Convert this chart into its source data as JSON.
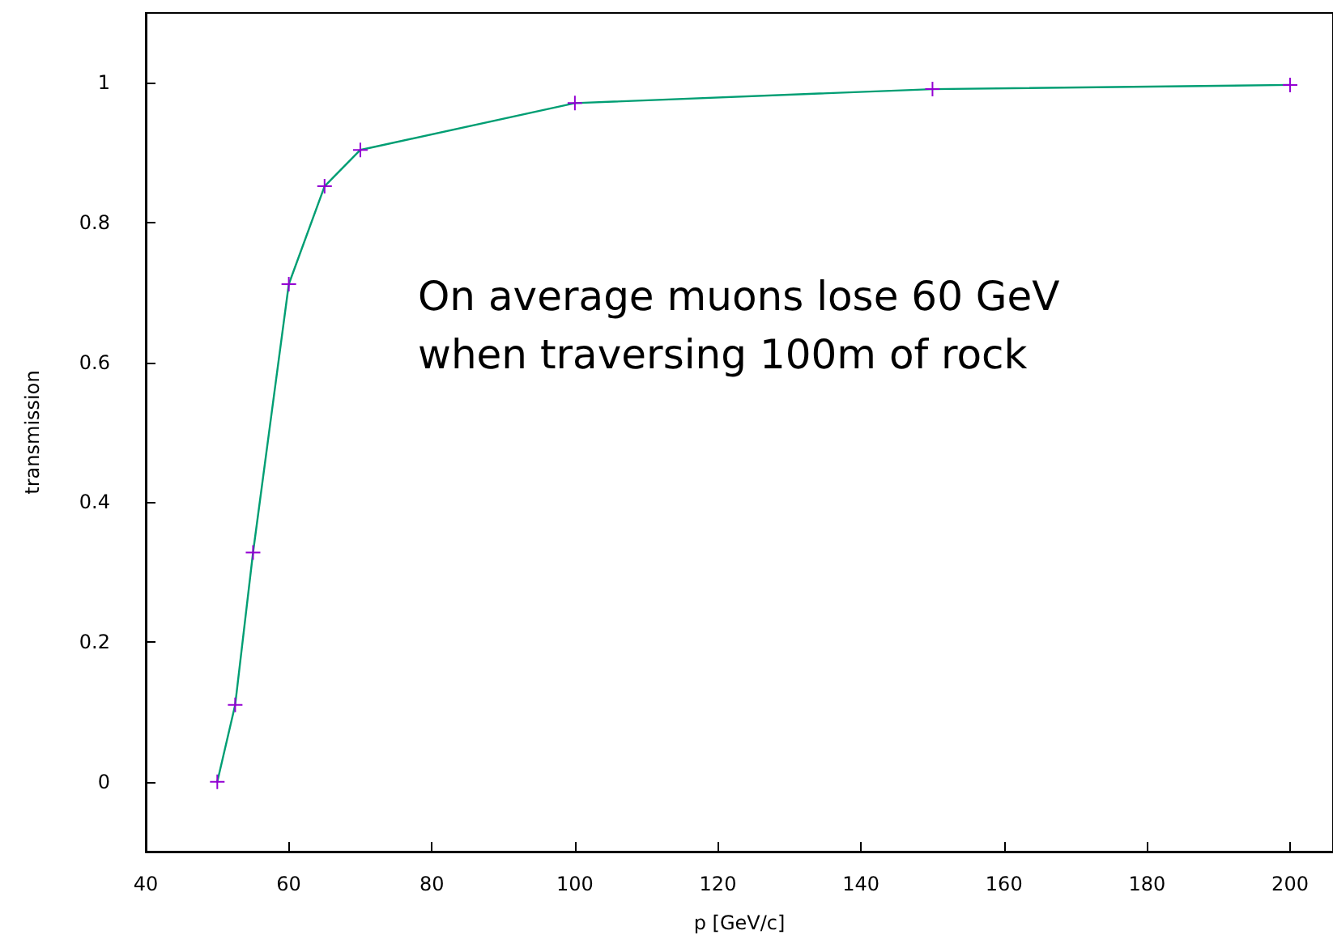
{
  "chart_data": {
    "type": "line",
    "xlabel": "p [GeV/c]",
    "ylabel": "transmission",
    "annotations": [
      "On average muons lose 60 GeV\nwhen traversing 100m of rock"
    ],
    "series": [
      {
        "color": "#009e73",
        "colors": [
          "#9400d3",
          "#9400d3",
          "#9400d3",
          "#9400d3",
          "#9400d3",
          "#9400d3",
          "#9400d3",
          "#9400d3",
          "#9400d3"
        ],
        "x": [
          50,
          52.5,
          55,
          60,
          65,
          70,
          100,
          150,
          200
        ],
        "values": [
          0,
          0.11,
          0.328,
          0.712,
          0.852,
          0.904,
          0.971,
          0.991,
          0.997
        ]
      }
    ],
    "xlim": [
      40,
      206
    ],
    "xticks": [
      40,
      60,
      80,
      100,
      120,
      140,
      160,
      180,
      200
    ],
    "ylim": [
      -0.1,
      1.1
    ],
    "yticks": [
      0,
      0.2,
      0.4,
      0.6,
      0.8,
      1
    ],
    "grid": false,
    "marker": "cross",
    "line_style": "solid"
  }
}
